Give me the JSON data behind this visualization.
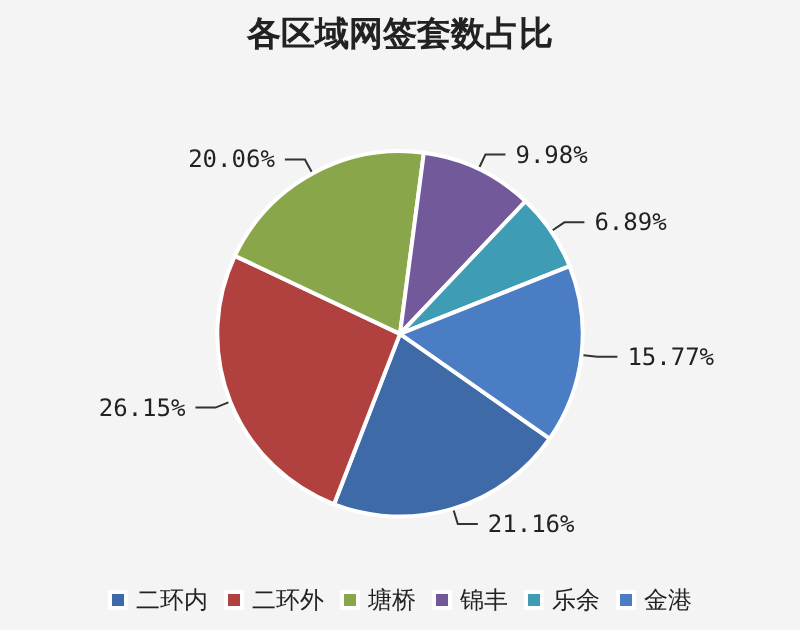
{
  "chart_data": {
    "type": "pie",
    "title": "各区域网签套数占比",
    "categories": [
      "二环内",
      "二环外",
      "塘桥",
      "锦丰",
      "乐余",
      "金港"
    ],
    "values": [
      21.16,
      26.15,
      20.06,
      9.98,
      6.89,
      15.77
    ],
    "value_labels": [
      "21.16%",
      "26.15%",
      "20.06%",
      "9.98%",
      "6.89%",
      "15.77%"
    ],
    "colors": [
      "#3f6aa8",
      "#b0413e",
      "#8aa64a",
      "#71599a",
      "#3f9cb5",
      "#4a7dc4"
    ],
    "legend": "bottom"
  }
}
